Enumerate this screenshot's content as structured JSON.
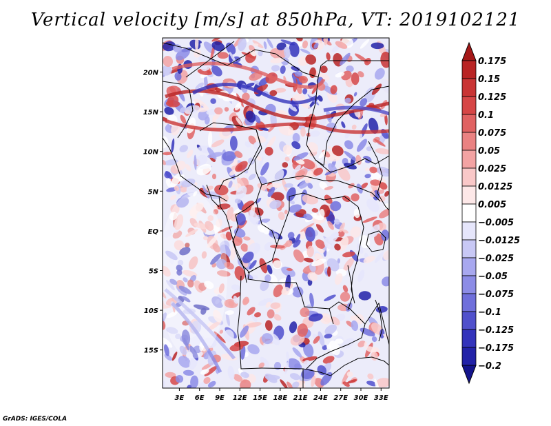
{
  "title": "Vertical velocity [m/s] at 850hPa, VT: 2019102121",
  "credit": "GrADS: IGES/COLA",
  "map": {
    "lat_labels": [
      "20N",
      "15N",
      "10N",
      "5N",
      "EQ",
      "5S",
      "10S",
      "15S"
    ],
    "lat_values": [
      20,
      15,
      10,
      5,
      0,
      -5,
      -10,
      -15
    ],
    "lon_labels": [
      "3E",
      "6E",
      "9E",
      "12E",
      "15E",
      "18E",
      "21E",
      "24E",
      "27E",
      "30E",
      "33E"
    ],
    "lon_values": [
      3,
      6,
      9,
      12,
      15,
      18,
      21,
      24,
      27,
      30,
      33
    ],
    "lon_range": [
      0.5,
      34.2
    ],
    "lat_range": [
      -19.8,
      24.3
    ]
  },
  "colorbar": {
    "labels": [
      "0.175",
      "0.15",
      "0.125",
      "0.1",
      "0.075",
      "0.05",
      "0.025",
      "0.0125",
      "0.005",
      "−0.005",
      "−0.0125",
      "−0.025",
      "−0.05",
      "−0.075",
      "−0.1",
      "−0.125",
      "−0.175",
      "−0.2"
    ],
    "colors": [
      "#a51818",
      "#b92424",
      "#c93434",
      "#d64646",
      "#e06262",
      "#ea8282",
      "#f3a3a3",
      "#f9c8c8",
      "#fde8e8",
      "#ffffff",
      "#e6e6fb",
      "#c8c8f5",
      "#a8a8ef",
      "#8c8ce6",
      "#6f6fdb",
      "#5050cc",
      "#3333bb",
      "#2222a8",
      "#14148c"
    ]
  }
}
